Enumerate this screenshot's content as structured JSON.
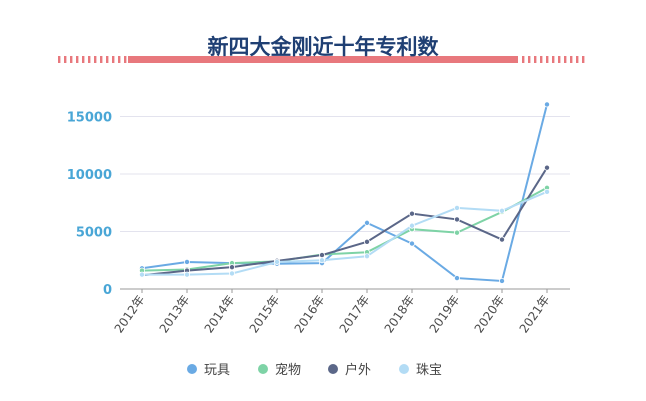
{
  "chart_data": {
    "type": "line",
    "title": "新四大金刚近十年专利数",
    "xlabel": "",
    "ylabel": "",
    "categories": [
      "2012年",
      "2013年",
      "2014年",
      "2015年",
      "2016年",
      "2017年",
      "2018年",
      "2019年",
      "2020年",
      "2021年"
    ],
    "ylim": [
      0,
      17000
    ],
    "yticks": [
      0,
      5000,
      10000,
      15000
    ],
    "ytick_labels": [
      "0",
      "5000",
      "10000",
      "15000"
    ],
    "grid": true,
    "legend_position": "bottom",
    "series": [
      {
        "name": "玩具",
        "color": "#6aaae4",
        "values": [
          1800,
          2350,
          2250,
          2200,
          2250,
          5750,
          3950,
          950,
          700,
          16050
        ]
      },
      {
        "name": "宠物",
        "color": "#7ed3a6",
        "values": [
          1600,
          1700,
          2250,
          2400,
          3000,
          3200,
          5200,
          4900,
          6700,
          8800
        ]
      },
      {
        "name": "户外",
        "color": "#5b6788",
        "values": [
          1200,
          1600,
          1900,
          2450,
          2950,
          4100,
          6550,
          6050,
          4300,
          10550
        ]
      },
      {
        "name": "珠宝",
        "color": "#b3dcf5",
        "values": [
          1250,
          1250,
          1350,
          2350,
          2500,
          2850,
          5500,
          7050,
          6800,
          8450
        ]
      }
    ]
  },
  "colors": {
    "title": "#1f3f73",
    "ytick": "#49a6d6",
    "xtick": "#4a4a4a",
    "grid": "#e3e3ee",
    "axis": "#9a9a9a",
    "band": "#e8787d",
    "legend_text": "#444444"
  }
}
